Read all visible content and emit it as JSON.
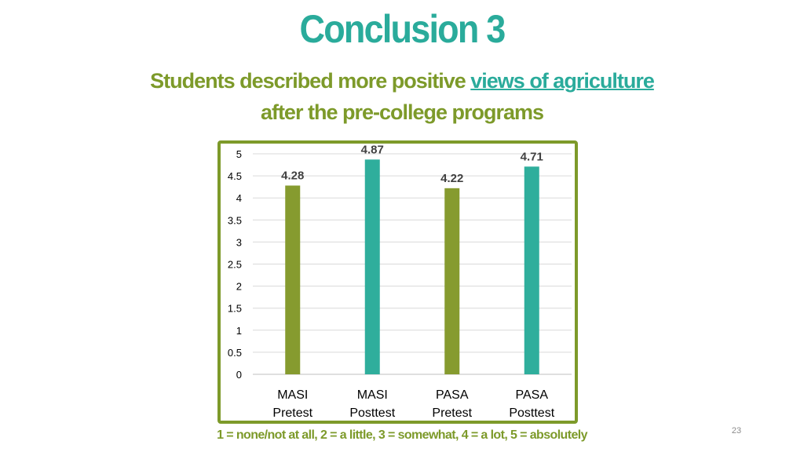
{
  "slide": {
    "title": "Conclusion 3",
    "subtitle_part1": "Students described more positive ",
    "subtitle_highlight": "views of agriculture",
    "subtitle_line2": "after the pre-college programs",
    "footnote": "1 = none/not at all, 2 = a little, 3 = somewhat, 4 = a lot, 5 = absolutely",
    "page_number": "23"
  },
  "colors": {
    "green": "#869b2f",
    "teal": "#2fae9c",
    "title_teal": "#2aab9b",
    "subtitle_green": "#7d9a2a"
  },
  "chart_data": {
    "type": "bar",
    "categories": [
      [
        "MASI",
        "Pretest"
      ],
      [
        "MASI",
        "Posttest"
      ],
      [
        "PASA",
        "Pretest"
      ],
      [
        "PASA",
        "Posttest"
      ]
    ],
    "values": [
      4.28,
      4.87,
      4.22,
      4.71
    ],
    "value_labels": [
      "4.28",
      "4.87",
      "4.22",
      "4.71"
    ],
    "bar_colors": [
      "#869b2f",
      "#2fae9c",
      "#869b2f",
      "#2fae9c"
    ],
    "ylim": [
      0,
      5
    ],
    "yticks": [
      "0",
      "0.5",
      "1",
      "1.5",
      "2",
      "2.5",
      "3",
      "3.5",
      "4",
      "4.5",
      "5"
    ],
    "ytick_values": [
      0,
      0.5,
      1,
      1.5,
      2,
      2.5,
      3,
      3.5,
      4,
      4.5,
      5
    ],
    "grid": true,
    "legend": "none",
    "xlabel": "",
    "ylabel": ""
  }
}
